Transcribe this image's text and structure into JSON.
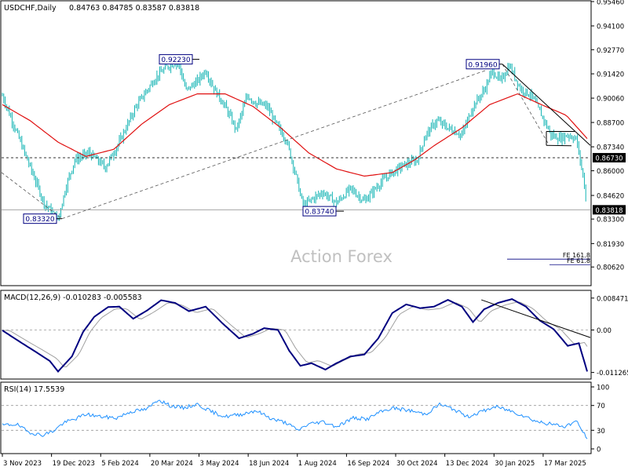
{
  "chart_data": [
    {
      "type": "ohlc",
      "panel": "price",
      "title": "USDCHF,Daily",
      "ohlc_readout": "0.84763 0.84785 0.83587 0.83818",
      "watermark": "Action Forex",
      "ylim": [
        0.7962,
        0.9546
      ],
      "y_ticks": [
        "0.95460",
        "0.94100",
        "0.92770",
        "0.91420",
        "0.90060",
        "0.88700",
        "0.87340",
        "0.86000",
        "0.84620",
        "0.83300",
        "0.81930",
        "0.80620"
      ],
      "price_tags": [
        {
          "label": "0.86730",
          "value": 0.8673,
          "style": "dark"
        },
        {
          "label": "0.83818",
          "value": 0.83818,
          "style": "dark"
        }
      ],
      "level_boxes": [
        {
          "label": "0.92230",
          "value": 0.9223
        },
        {
          "label": "0.83320",
          "value": 0.8332
        },
        {
          "label": "0.83740",
          "value": 0.8374
        },
        {
          "label": "0.91960",
          "value": 0.9196
        }
      ],
      "fib_labels": [
        {
          "label": "FE 161.8",
          "value": 0.8106
        },
        {
          "label": "FE 61.8",
          "value": 0.8075
        }
      ],
      "price_anchors": [
        [
          0,
          0.902
        ],
        [
          8,
          0.886
        ],
        [
          18,
          0.866
        ],
        [
          30,
          0.842
        ],
        [
          40,
          0.833
        ],
        [
          46,
          0.852
        ],
        [
          52,
          0.866
        ],
        [
          62,
          0.87
        ],
        [
          74,
          0.862
        ],
        [
          84,
          0.876
        ],
        [
          96,
          0.896
        ],
        [
          110,
          0.912
        ],
        [
          118,
          0.918
        ],
        [
          126,
          0.921
        ],
        [
          132,
          0.905
        ],
        [
          140,
          0.91
        ],
        [
          146,
          0.916
        ],
        [
          152,
          0.906
        ],
        [
          160,
          0.896
        ],
        [
          168,
          0.883
        ],
        [
          176,
          0.902
        ],
        [
          182,
          0.898
        ],
        [
          190,
          0.896
        ],
        [
          196,
          0.887
        ],
        [
          204,
          0.877
        ],
        [
          210,
          0.86
        ],
        [
          216,
          0.84
        ],
        [
          222,
          0.844
        ],
        [
          230,
          0.848
        ],
        [
          240,
          0.842
        ],
        [
          250,
          0.85
        ],
        [
          260,
          0.843
        ],
        [
          270,
          0.852
        ],
        [
          278,
          0.858
        ],
        [
          288,
          0.863
        ],
        [
          298,
          0.866
        ],
        [
          304,
          0.88
        ],
        [
          312,
          0.888
        ],
        [
          320,
          0.884
        ],
        [
          330,
          0.88
        ],
        [
          338,
          0.896
        ],
        [
          346,
          0.905
        ],
        [
          352,
          0.916
        ],
        [
          358,
          0.91
        ],
        [
          364,
          0.919
        ],
        [
          372,
          0.906
        ],
        [
          380,
          0.902
        ],
        [
          388,
          0.89
        ],
        [
          394,
          0.88
        ],
        [
          400,
          0.878
        ],
        [
          406,
          0.88
        ],
        [
          412,
          0.878
        ],
        [
          415,
          0.866
        ],
        [
          418,
          0.852
        ],
        [
          420,
          0.838
        ]
      ],
      "sma_anchors": [
        [
          0,
          0.897
        ],
        [
          20,
          0.888
        ],
        [
          40,
          0.876
        ],
        [
          60,
          0.868
        ],
        [
          80,
          0.872
        ],
        [
          100,
          0.886
        ],
        [
          120,
          0.897
        ],
        [
          140,
          0.903
        ],
        [
          160,
          0.903
        ],
        [
          180,
          0.896
        ],
        [
          200,
          0.884
        ],
        [
          220,
          0.87
        ],
        [
          240,
          0.861
        ],
        [
          260,
          0.857
        ],
        [
          280,
          0.859
        ],
        [
          296,
          0.866
        ],
        [
          310,
          0.874
        ],
        [
          330,
          0.884
        ],
        [
          350,
          0.897
        ],
        [
          370,
          0.903
        ],
        [
          390,
          0.896
        ],
        [
          405,
          0.891
        ],
        [
          420,
          0.878
        ]
      ],
      "n_bars": 420
    },
    {
      "type": "line",
      "panel": "macd",
      "title": "MACD(12,26,9) -0.010283 -0.005583",
      "ylim": [
        -0.0128,
        0.0101
      ],
      "y_ticks": [
        "0.008471",
        "0.00",
        "-0.011265"
      ],
      "zero_tag": "0.00",
      "macd_anchors": [
        [
          0,
          -0.0001
        ],
        [
          12,
          -0.003
        ],
        [
          24,
          -0.0058
        ],
        [
          34,
          -0.0082
        ],
        [
          40,
          -0.011
        ],
        [
          50,
          -0.007
        ],
        [
          58,
          -0.0005
        ],
        [
          66,
          0.0035
        ],
        [
          76,
          0.0061
        ],
        [
          84,
          0.0062
        ],
        [
          94,
          0.003
        ],
        [
          104,
          0.0052
        ],
        [
          114,
          0.0079
        ],
        [
          124,
          0.0072
        ],
        [
          134,
          0.005
        ],
        [
          146,
          0.0062
        ],
        [
          158,
          0.0018
        ],
        [
          170,
          -0.0022
        ],
        [
          180,
          -0.001
        ],
        [
          188,
          0.0005
        ],
        [
          198,
          0.0
        ],
        [
          206,
          -0.0055
        ],
        [
          214,
          -0.0095
        ],
        [
          222,
          -0.0088
        ],
        [
          232,
          -0.0105
        ],
        [
          240,
          -0.0088
        ],
        [
          250,
          -0.007
        ],
        [
          260,
          -0.0065
        ],
        [
          270,
          -0.0022
        ],
        [
          280,
          0.0045
        ],
        [
          290,
          0.0068
        ],
        [
          300,
          0.0058
        ],
        [
          310,
          0.0062
        ],
        [
          320,
          0.008
        ],
        [
          330,
          0.0062
        ],
        [
          338,
          0.0021
        ],
        [
          346,
          0.0055
        ],
        [
          356,
          0.0072
        ],
        [
          366,
          0.0082
        ],
        [
          376,
          0.0062
        ],
        [
          386,
          0.0025
        ],
        [
          396,
          0.0002
        ],
        [
          406,
          -0.0042
        ],
        [
          414,
          -0.0035
        ],
        [
          420,
          -0.011
        ]
      ],
      "signal_lag": 5,
      "trend_line": [
        [
          344,
          0.008
        ],
        [
          420,
          -0.002
        ]
      ]
    },
    {
      "type": "line",
      "panel": "rsi",
      "title": "RSI(14) 17.5539",
      "ylim": [
        0,
        100
      ],
      "y_ticks": [
        "100",
        "70",
        "30",
        "0"
      ],
      "rsi_anchors": [
        [
          0,
          38
        ],
        [
          10,
          40
        ],
        [
          18,
          28
        ],
        [
          28,
          22
        ],
        [
          36,
          28
        ],
        [
          44,
          42
        ],
        [
          52,
          48
        ],
        [
          60,
          56
        ],
        [
          70,
          52
        ],
        [
          82,
          50
        ],
        [
          92,
          60
        ],
        [
          104,
          64
        ],
        [
          112,
          80
        ],
        [
          120,
          70
        ],
        [
          130,
          66
        ],
        [
          140,
          72
        ],
        [
          150,
          60
        ],
        [
          160,
          52
        ],
        [
          172,
          56
        ],
        [
          182,
          62
        ],
        [
          194,
          48
        ],
        [
          204,
          42
        ],
        [
          212,
          30
        ],
        [
          220,
          40
        ],
        [
          230,
          44
        ],
        [
          240,
          36
        ],
        [
          252,
          50
        ],
        [
          262,
          48
        ],
        [
          270,
          58
        ],
        [
          280,
          66
        ],
        [
          292,
          62
        ],
        [
          304,
          56
        ],
        [
          314,
          72
        ],
        [
          324,
          64
        ],
        [
          334,
          52
        ],
        [
          344,
          60
        ],
        [
          354,
          68
        ],
        [
          364,
          62
        ],
        [
          374,
          54
        ],
        [
          384,
          44
        ],
        [
          394,
          40
        ],
        [
          404,
          36
        ],
        [
          412,
          45
        ],
        [
          420,
          17
        ]
      ]
    }
  ],
  "x_axis": {
    "labels": [
      "3 Nov 2023",
      "19 Dec 2023",
      "5 Feb 2024",
      "20 Mar 2024",
      "3 May 2024",
      "18 Jun 2024",
      "1 Aug 2024",
      "16 Sep 2024",
      "30 Oct 2024",
      "13 Dec 2024",
      "30 Jan 2025",
      "17 Mar 2025"
    ]
  },
  "colors": {
    "bars": "#14b4b4",
    "sma": "#e01010",
    "macd": "#000080",
    "signal": "#a0a0a0",
    "rsi": "#1e90ff",
    "axis": "#000000",
    "tag_bg": "#000000"
  }
}
